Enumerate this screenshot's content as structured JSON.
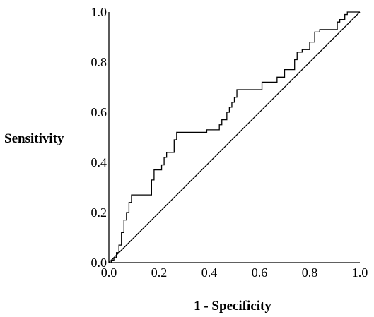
{
  "chart_data": {
    "type": "line",
    "title": "",
    "xlabel": "1 - Specificity",
    "ylabel": "Sensitivity",
    "xlim": [
      0,
      1
    ],
    "ylim": [
      0,
      1
    ],
    "x_ticks": [
      "0.0",
      "0.2",
      "0.4",
      "0.6",
      "0.8",
      "1.0"
    ],
    "y_ticks": [
      "0.0",
      "0.2",
      "0.4",
      "0.6",
      "0.8",
      "1.0"
    ],
    "grid": false,
    "legend": "none",
    "series": [
      {
        "role": "roc-curve",
        "points": [
          [
            0.0,
            0.0
          ],
          [
            0.01,
            0.0
          ],
          [
            0.01,
            0.01
          ],
          [
            0.02,
            0.01
          ],
          [
            0.02,
            0.02
          ],
          [
            0.03,
            0.02
          ],
          [
            0.03,
            0.04
          ],
          [
            0.04,
            0.04
          ],
          [
            0.04,
            0.07
          ],
          [
            0.05,
            0.07
          ],
          [
            0.05,
            0.12
          ],
          [
            0.06,
            0.12
          ],
          [
            0.06,
            0.17
          ],
          [
            0.07,
            0.17
          ],
          [
            0.07,
            0.2
          ],
          [
            0.08,
            0.2
          ],
          [
            0.08,
            0.24
          ],
          [
            0.09,
            0.24
          ],
          [
            0.09,
            0.27
          ],
          [
            0.17,
            0.27
          ],
          [
            0.17,
            0.33
          ],
          [
            0.18,
            0.33
          ],
          [
            0.18,
            0.37
          ],
          [
            0.21,
            0.37
          ],
          [
            0.21,
            0.39
          ],
          [
            0.22,
            0.39
          ],
          [
            0.22,
            0.42
          ],
          [
            0.23,
            0.42
          ],
          [
            0.23,
            0.44
          ],
          [
            0.26,
            0.44
          ],
          [
            0.26,
            0.49
          ],
          [
            0.27,
            0.49
          ],
          [
            0.27,
            0.52
          ],
          [
            0.39,
            0.52
          ],
          [
            0.39,
            0.53
          ],
          [
            0.44,
            0.53
          ],
          [
            0.44,
            0.55
          ],
          [
            0.45,
            0.55
          ],
          [
            0.45,
            0.57
          ],
          [
            0.47,
            0.57
          ],
          [
            0.47,
            0.6
          ],
          [
            0.48,
            0.6
          ],
          [
            0.48,
            0.62
          ],
          [
            0.49,
            0.62
          ],
          [
            0.49,
            0.64
          ],
          [
            0.5,
            0.64
          ],
          [
            0.5,
            0.66
          ],
          [
            0.51,
            0.66
          ],
          [
            0.51,
            0.69
          ],
          [
            0.61,
            0.69
          ],
          [
            0.61,
            0.72
          ],
          [
            0.67,
            0.72
          ],
          [
            0.67,
            0.74
          ],
          [
            0.7,
            0.74
          ],
          [
            0.7,
            0.77
          ],
          [
            0.74,
            0.77
          ],
          [
            0.74,
            0.81
          ],
          [
            0.75,
            0.81
          ],
          [
            0.75,
            0.84
          ],
          [
            0.77,
            0.84
          ],
          [
            0.77,
            0.85
          ],
          [
            0.8,
            0.85
          ],
          [
            0.8,
            0.88
          ],
          [
            0.82,
            0.88
          ],
          [
            0.82,
            0.92
          ],
          [
            0.84,
            0.92
          ],
          [
            0.84,
            0.93
          ],
          [
            0.91,
            0.93
          ],
          [
            0.91,
            0.96
          ],
          [
            0.92,
            0.96
          ],
          [
            0.92,
            0.97
          ],
          [
            0.94,
            0.97
          ],
          [
            0.94,
            0.99
          ],
          [
            0.95,
            0.99
          ],
          [
            0.95,
            1.0
          ],
          [
            1.0,
            1.0
          ]
        ]
      },
      {
        "role": "reference-line",
        "points": [
          [
            0.0,
            0.0
          ],
          [
            1.0,
            1.0
          ]
        ]
      }
    ]
  }
}
